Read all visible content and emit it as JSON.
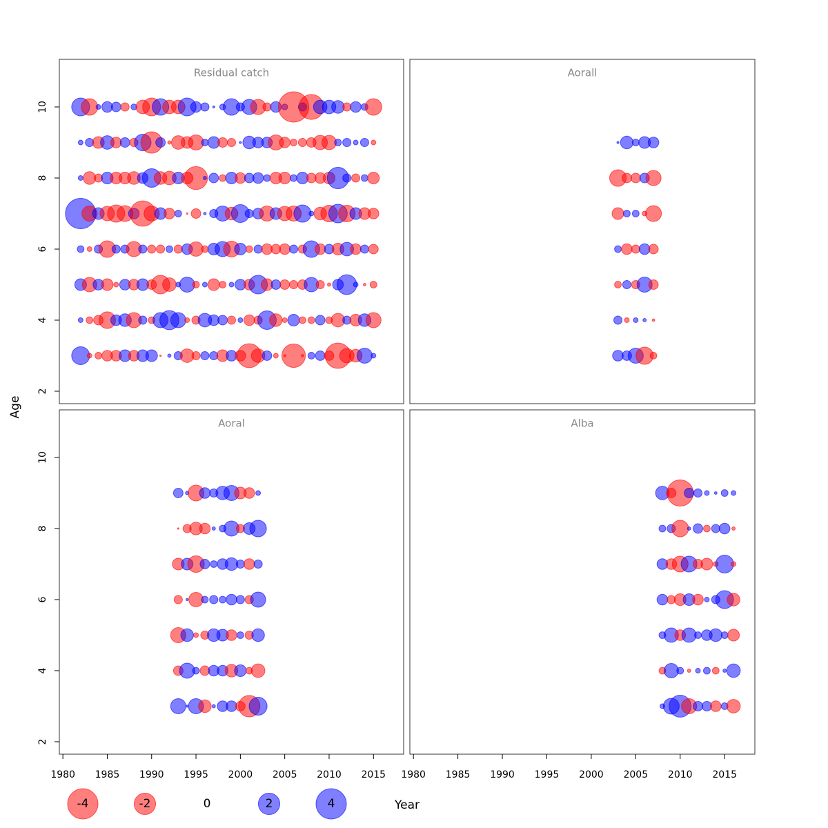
{
  "chart_data": [
    {
      "type": "bubble",
      "title": "Residual catch",
      "x": [
        1982,
        1983,
        1984,
        1985,
        1986,
        1987,
        1988,
        1989,
        1990,
        1991,
        1992,
        1993,
        1994,
        1995,
        1996,
        1997,
        1998,
        1999,
        2000,
        2001,
        2002,
        2003,
        2004,
        2005,
        2006,
        2007,
        2008,
        2009,
        2010,
        2011,
        2012,
        2013,
        2014,
        2015
      ],
      "ages": [
        10,
        9,
        8,
        7,
        6,
        5,
        4,
        3
      ],
      "values": [
        [
          1.4,
          -1.2,
          0.1,
          0.5,
          0.4,
          -0.3,
          0.15,
          -0.8,
          -1.4,
          1.2,
          -0.8,
          -0.8,
          1.4,
          0.5,
          0.3,
          0.02,
          0.15,
          1.2,
          0.3,
          1.0,
          -1.0,
          -0.3,
          0.5,
          0.15,
          -4.0,
          0.3,
          -2.7,
          0.8,
          0.8,
          0.7,
          -0.3,
          0.5,
          0.2,
          -1.2
        ],
        [
          0.1,
          0.3,
          -0.6,
          0.8,
          -0.5,
          0.4,
          -0.3,
          1.2,
          -2.0,
          0.4,
          -0.05,
          -0.8,
          -0.6,
          -1.0,
          0.2,
          0.6,
          -0.4,
          -0.3,
          0.02,
          0.7,
          0.5,
          0.5,
          -1.0,
          -0.5,
          -0.2,
          -0.3,
          -0.4,
          -0.9,
          -0.9,
          0.2,
          0.3,
          0.1,
          0.3,
          -0.1
        ],
        [
          0.1,
          -0.7,
          -0.3,
          0.6,
          -0.6,
          -0.6,
          -0.7,
          0.5,
          1.5,
          -0.7,
          -0.8,
          0.6,
          -0.6,
          -2.3,
          0.05,
          0.4,
          -0.2,
          0.6,
          -0.5,
          0.4,
          0.5,
          0.2,
          -0.6,
          -0.6,
          0.2,
          0.6,
          -0.4,
          -0.5,
          -0.6,
          2.0,
          0.3,
          -0.3,
          0.2,
          -0.6
        ],
        [
          4.0,
          -1.0,
          0.6,
          -0.9,
          -1.3,
          -1.1,
          0.5,
          -2.8,
          -1.0,
          0.6,
          -0.5,
          0.2,
          -0.01,
          -0.4,
          0.03,
          0.3,
          1.0,
          -0.7,
          1.4,
          0.3,
          0.5,
          -1.0,
          0.6,
          -0.9,
          -1.0,
          1.3,
          0.1,
          -0.7,
          -1.2,
          1.5,
          -1.2,
          0.6,
          -0.6,
          -0.5
        ],
        [
          0.2,
          -0.1,
          0.3,
          -1.2,
          0.3,
          0.3,
          -1.0,
          0.3,
          -0.3,
          -0.3,
          0.2,
          -0.3,
          0.5,
          -0.9,
          -0.2,
          0.6,
          1.0,
          -1.1,
          0.6,
          -0.2,
          0.3,
          -0.5,
          -0.4,
          -0.5,
          0.3,
          -0.3,
          1.2,
          -0.5,
          0.4,
          -0.6,
          0.8,
          -0.5,
          0.3,
          -0.4
        ],
        [
          0.6,
          -0.9,
          0.5,
          -0.6,
          -0.1,
          0.5,
          -0.5,
          0.6,
          -0.4,
          -1.5,
          -0.8,
          0.1,
          1.0,
          -0.2,
          0.1,
          -0.6,
          -0.2,
          0.1,
          0.5,
          -0.5,
          1.5,
          -0.6,
          0.4,
          -0.4,
          -0.3,
          -0.4,
          0.9,
          -0.3,
          -0.05,
          0.5,
          1.7,
          0.1,
          -0.03,
          -0.2
        ],
        [
          0.1,
          -0.2,
          -0.4,
          -1.2,
          0.5,
          0.7,
          -1.0,
          0.3,
          -0.2,
          1.0,
          1.6,
          1.0,
          -0.1,
          -0.3,
          0.8,
          0.5,
          0.4,
          -0.3,
          0.1,
          -0.5,
          -0.3,
          1.5,
          -0.7,
          -0.1,
          0.6,
          -0.2,
          -0.2,
          0.4,
          -0.2,
          -0.8,
          0.3,
          -0.6,
          0.7,
          -1.0
        ],
        [
          1.4,
          -0.1,
          -0.2,
          -0.5,
          -0.5,
          0.6,
          -0.5,
          0.6,
          0.6,
          -0.01,
          0.05,
          0.3,
          -0.8,
          -0.3,
          0.3,
          0.3,
          -0.6,
          0.5,
          -0.5,
          -2.5,
          -0.8,
          0.4,
          -0.1,
          -0.02,
          -2.4,
          -0.03,
          0.2,
          0.4,
          -0.4,
          -2.8,
          -0.9,
          -0.7,
          1.0,
          0.1
        ]
      ],
      "xlim": [
        1979.6,
        2018.4
      ],
      "ylim": [
        1.65,
        11.34
      ],
      "yticks": [
        2,
        4,
        6,
        8,
        10
      ]
    },
    {
      "type": "bubble",
      "title": "Aorall",
      "x": [
        2003,
        2004,
        2005,
        2006,
        2007
      ],
      "ages": [
        9,
        8,
        7,
        6,
        5,
        4,
        3
      ],
      "values": [
        [
          0.02,
          0.7,
          0.2,
          0.6,
          0.5
        ],
        [
          -1.2,
          -0.4,
          -0.4,
          0.4,
          -1.0
        ],
        [
          -0.6,
          0.2,
          0.2,
          -0.1,
          -1.1
        ],
        [
          0.2,
          -0.5,
          -0.3,
          0.5,
          -0.4
        ],
        [
          -0.2,
          0.3,
          -0.3,
          1.0,
          -0.4
        ],
        [
          0.3,
          -0.1,
          0.1,
          0.05,
          -0.03
        ],
        [
          0.5,
          0.4,
          1.0,
          -1.3,
          -0.2
        ]
      ],
      "xlim": [
        1979.6,
        2018.4
      ],
      "ylim": [
        1.65,
        11.34
      ]
    },
    {
      "type": "bubble",
      "title": "Aoral",
      "x": [
        1993,
        1994,
        1995,
        1996,
        1997,
        1998,
        1999,
        2000,
        2001,
        2002
      ],
      "ages": [
        9,
        8,
        7,
        6,
        5,
        4,
        3
      ],
      "values": [
        [
          0.4,
          0.05,
          -1.1,
          0.5,
          0.3,
          0.8,
          1.0,
          -0.6,
          -0.5,
          0.1
        ],
        [
          -0.01,
          -0.3,
          -0.7,
          -0.5,
          0.05,
          0.2,
          1.0,
          -0.3,
          0.6,
          1.2
        ],
        [
          -0.6,
          0.6,
          -1.2,
          0.4,
          0.2,
          0.5,
          0.7,
          0.3,
          -0.5,
          0.3
        ],
        [
          -0.3,
          0.02,
          -0.9,
          0.2,
          0.3,
          0.2,
          0.5,
          0.3,
          -0.3,
          1.0
        ],
        [
          -1.0,
          0.7,
          -0.1,
          -0.3,
          0.7,
          0.6,
          -0.5,
          0.2,
          -0.3,
          0.7
        ],
        [
          -0.4,
          1.0,
          0.2,
          -0.4,
          0.5,
          0.5,
          -0.7,
          0.6,
          -0.2,
          -0.8
        ],
        [
          1.0,
          0.02,
          1.0,
          -0.7,
          0.05,
          0.5,
          0.5,
          -0.4,
          -2.0,
          1.4
        ]
      ],
      "xlim": [
        1979.6,
        2018.4
      ],
      "ylim": [
        1.65,
        11.34
      ],
      "yticks": [
        2,
        4,
        6,
        8,
        10
      ],
      "xticks": [
        1980,
        1985,
        1990,
        1995,
        2000,
        2005,
        2010,
        2015
      ]
    },
    {
      "type": "bubble",
      "title": "Alba",
      "x": [
        2008,
        2009,
        2010,
        2011,
        2012,
        2013,
        2014,
        2015,
        2016
      ],
      "ages": [
        9,
        8,
        7,
        6,
        5,
        4,
        3
      ],
      "values": [
        [
          0.8,
          -0.4,
          -3.0,
          0.4,
          0.3,
          0.1,
          0.03,
          0.2,
          0.1
        ],
        [
          0.2,
          0.3,
          -1.2,
          0.05,
          0.4,
          -0.2,
          0.3,
          0.5,
          -0.05
        ],
        [
          0.5,
          -0.5,
          -1.1,
          1.1,
          -0.4,
          -0.6,
          -0.1,
          1.4,
          -0.1
        ],
        [
          0.5,
          -0.3,
          -0.6,
          0.6,
          -0.5,
          0.1,
          0.3,
          1.4,
          -0.7
        ],
        [
          0.2,
          0.9,
          -0.5,
          0.9,
          0.2,
          0.5,
          0.7,
          0.2,
          -0.6
        ],
        [
          -0.2,
          0.9,
          0.2,
          -0.05,
          0.1,
          0.2,
          -0.2,
          0.05,
          0.8
        ],
        [
          0.1,
          1.1,
          2.1,
          -1.0,
          0.4,
          0.4,
          -0.5,
          0.2,
          -0.8
        ]
      ],
      "xlim": [
        1979.6,
        2018.4
      ],
      "ylim": [
        1.65,
        11.34
      ],
      "xticks": [
        1980,
        1985,
        1990,
        1995,
        2000,
        2005,
        2010,
        2015
      ]
    }
  ],
  "xlabel": "Year",
  "ylabel": "Age",
  "colors": {
    "positive": "#0000ff",
    "negative": "#ff0000"
  },
  "size_legend": {
    "values": [
      -4,
      -2,
      0,
      2,
      4
    ]
  }
}
